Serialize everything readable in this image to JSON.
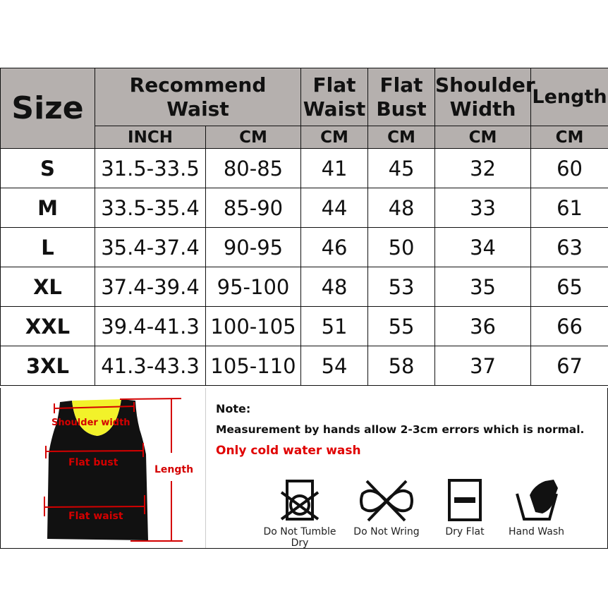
{
  "table": {
    "headers": {
      "size": "Size",
      "recommend_waist": "Recommend Waist",
      "flat_waist": "Flat Waist",
      "flat_bust": "Flat Bust",
      "shoulder_width": "Shoulder Width",
      "length": "Length"
    },
    "units": [
      "INCH",
      "CM",
      "CM",
      "CM",
      "CM",
      "CM"
    ],
    "rows": [
      [
        "S",
        "31.5-33.5",
        "80-85",
        "41",
        "45",
        "32",
        "60"
      ],
      [
        "M",
        "33.5-35.4",
        "85-90",
        "44",
        "48",
        "33",
        "61"
      ],
      [
        "L",
        "35.4-37.4",
        "90-95",
        "46",
        "50",
        "34",
        "63"
      ],
      [
        "XL",
        "37.4-39.4",
        "95-100",
        "48",
        "53",
        "35",
        "65"
      ],
      [
        "XXL",
        "39.4-41.3",
        "100-105",
        "51",
        "55",
        "36",
        "66"
      ],
      [
        "3XL",
        "41.3-43.3",
        "105-110",
        "54",
        "58",
        "37",
        "67"
      ]
    ]
  },
  "diagram": {
    "shoulder": "Shoulder width",
    "bust": "Flat bust",
    "waist": "Flat waist",
    "length": "Length",
    "colors": {
      "vest": "#111111",
      "lining": "#f2f22a",
      "annotation": "#d40000"
    }
  },
  "notes": {
    "title": "Note:",
    "measurement": "Measurement by hands allow 2-3cm errors which is normal.",
    "wash": "Only cold water wash"
  },
  "care": [
    {
      "icon": "do-not-tumble-dry-icon",
      "label": "Do Not Tumble Dry"
    },
    {
      "icon": "do-not-wring-icon",
      "label": "Do Not Wring"
    },
    {
      "icon": "dry-flat-icon",
      "label": "Dry Flat"
    },
    {
      "icon": "hand-wash-icon",
      "label": "Hand Wash"
    }
  ]
}
